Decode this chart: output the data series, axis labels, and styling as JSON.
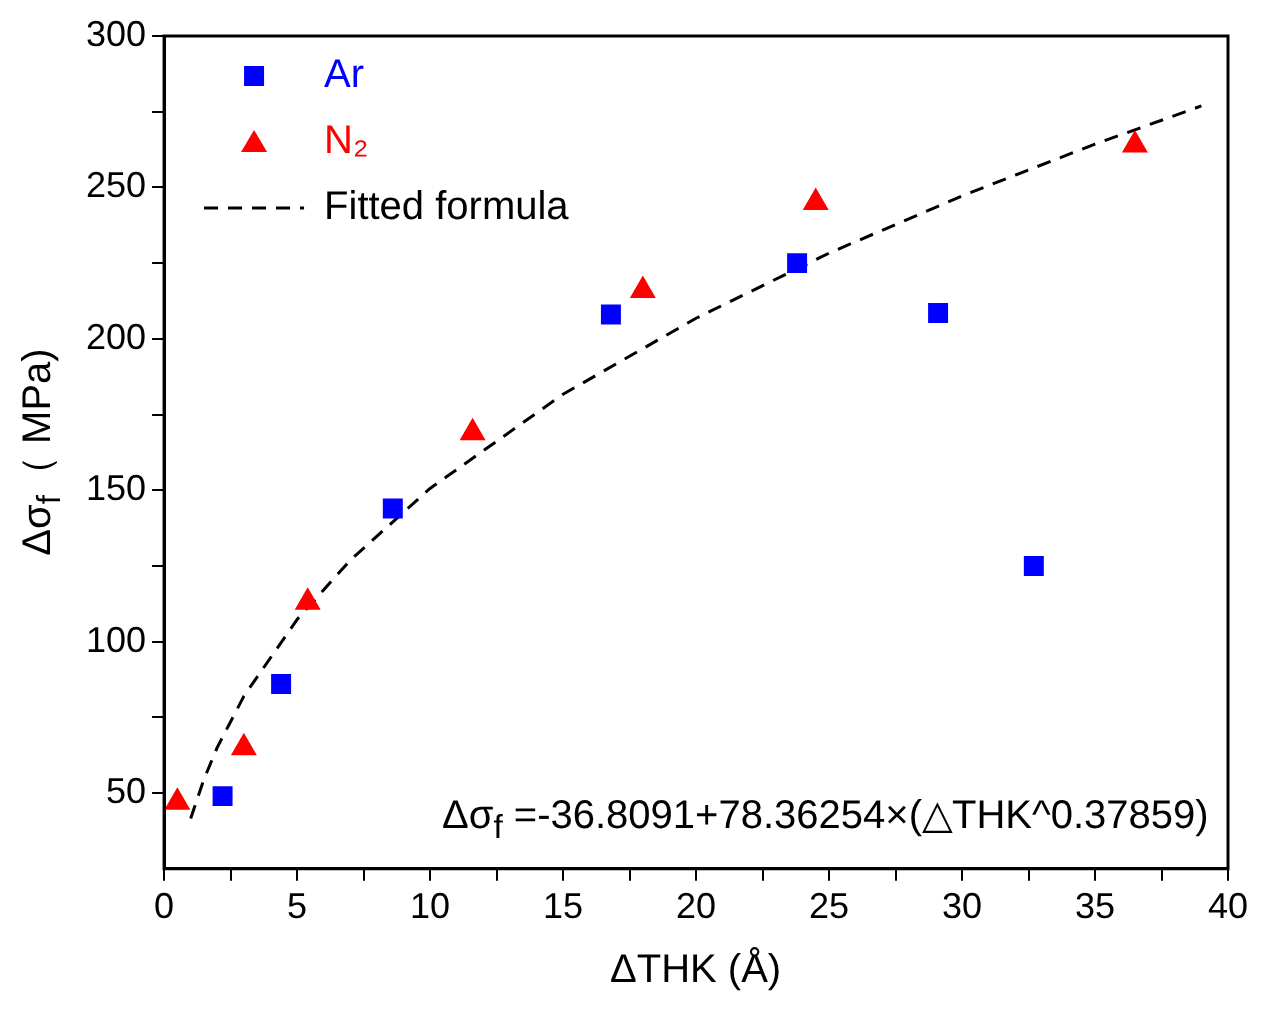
{
  "chart_data": {
    "type": "scatter",
    "xlabel": "ΔTHK (Å)",
    "ylabel": "Δσ$_{f}$（ MPa)",
    "xlim": [
      0,
      40
    ],
    "ylim": [
      25,
      300
    ],
    "xticks": [
      0,
      {
        "value": 2.5,
        "label": null
      },
      5,
      {
        "value": 7.5,
        "label": null
      },
      10,
      {
        "value": 12.5,
        "label": null
      },
      15,
      {
        "value": 17.5,
        "label": null
      },
      20,
      {
        "value": 22.5,
        "label": null
      },
      25,
      {
        "value": 27.5,
        "label": null
      },
      30,
      {
        "value": 32.5,
        "label": null
      },
      35,
      {
        "value": 37.5,
        "label": null
      },
      40
    ],
    "yticks": [
      50,
      {
        "value": 75,
        "label": null
      },
      100,
      {
        "value": 125,
        "label": null
      },
      150,
      {
        "value": 175,
        "label": null
      },
      200,
      {
        "value": 225,
        "label": null
      },
      250,
      {
        "value": 275,
        "label": null
      },
      300
    ],
    "grid": false,
    "legend": "top left",
    "annotations": [
      "Δσ$_{f}$ =-36.8091+78.36254×(△THK^0.37859)"
    ],
    "series": [
      {
        "name": "Ar",
        "marker": "square",
        "color": "#0000ff",
        "x": [
          2.2,
          4.4,
          8.6,
          16.8,
          23.8,
          29.1,
          32.7
        ],
        "values": [
          49,
          86,
          144,
          208,
          225,
          208.5,
          125
        ]
      },
      {
        "name": "N₂",
        "marker": "triangle",
        "color": "#ff0000",
        "x": [
          0.5,
          3,
          5.4,
          11.6,
          18,
          24.5,
          36.5
        ],
        "values": [
          47,
          65,
          113,
          169,
          216,
          245,
          264
        ]
      },
      {
        "name": "Fitted formula",
        "type": "line",
        "marker": "none",
        "line_style": "dashed",
        "color": "#000000",
        "x": [
          1,
          1.5,
          2,
          3,
          5,
          7,
          10,
          15,
          20,
          25,
          30,
          35,
          39
        ],
        "values": [
          41.6,
          54.6,
          65.1,
          82,
          107.3,
          126.9,
          150.6,
          181.7,
          206.8,
          228.3,
          247.2,
          264.3,
          276.9
        ]
      }
    ]
  }
}
